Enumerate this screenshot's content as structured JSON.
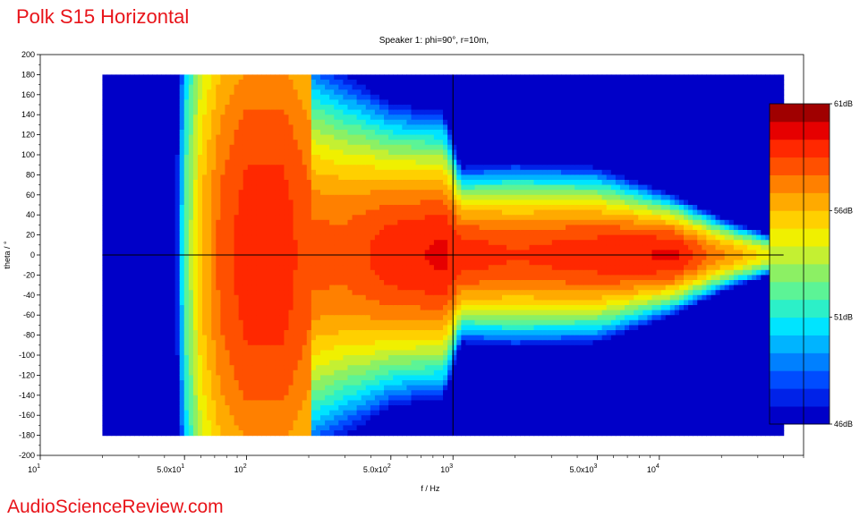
{
  "page_title": "Polk S15 Horizontal",
  "footer_brand": "AudioScienceReview.com",
  "chart_data": {
    "type": "heatmap",
    "title": "Speaker 1: phi=90°, r=10m,",
    "xlabel": "f / Hz",
    "ylabel": "theta / °",
    "x_scale": "log",
    "xlim": [
      10,
      50000
    ],
    "ylim": [
      -200,
      200
    ],
    "data_x_range": [
      20,
      40000
    ],
    "data_y_range": [
      -180,
      180
    ],
    "x_ticks": [
      {
        "value": 10,
        "base": "10",
        "exp": "1"
      },
      {
        "value": 50,
        "base": "5.0x10",
        "exp": "1"
      },
      {
        "value": 100,
        "base": "10",
        "exp": "2"
      },
      {
        "value": 500,
        "base": "5.0x10",
        "exp": "2"
      },
      {
        "value": 1000,
        "base": "10",
        "exp": "3"
      },
      {
        "value": 5000,
        "base": "5.0x10",
        "exp": "3"
      },
      {
        "value": 10000,
        "base": "10",
        "exp": "4"
      }
    ],
    "y_ticks": [
      200,
      180,
      160,
      140,
      120,
      100,
      80,
      60,
      40,
      20,
      0,
      -20,
      -40,
      -60,
      -80,
      -100,
      -120,
      -140,
      -160,
      -180,
      -200
    ],
    "crosshair": {
      "x": 1000,
      "y": 0
    },
    "colorbar": {
      "min": 46,
      "max": 61,
      "unit": "dB",
      "labels": [
        "61dB",
        "56dB",
        "51dB",
        "46dB"
      ],
      "label_values": [
        61,
        56,
        51,
        46
      ],
      "colors": [
        "#0000c8",
        "#0022e8",
        "#004cff",
        "#0080ff",
        "#00b4ff",
        "#00e4ff",
        "#2cf0c8",
        "#5cf496",
        "#8cf064",
        "#c4f032",
        "#f0f000",
        "#ffd000",
        "#ffaa00",
        "#ff8000",
        "#ff5000",
        "#ff2800",
        "#e60000",
        "#a00000"
      ]
    },
    "levels_at_0deg": [
      {
        "f": 20,
        "db": 46
      },
      {
        "f": 45,
        "db": 46
      },
      {
        "f": 50,
        "db": 52
      },
      {
        "f": 60,
        "db": 56
      },
      {
        "f": 75,
        "db": 58
      },
      {
        "f": 100,
        "db": 59
      },
      {
        "f": 150,
        "db": 59
      },
      {
        "f": 200,
        "db": 58
      },
      {
        "f": 300,
        "db": 58
      },
      {
        "f": 500,
        "db": 59
      },
      {
        "f": 900,
        "db": 59.5
      },
      {
        "f": 1100,
        "db": 59
      },
      {
        "f": 2000,
        "db": 58.5
      },
      {
        "f": 5000,
        "db": 59
      },
      {
        "f": 12000,
        "db": 59.5
      },
      {
        "f": 20000,
        "db": 57
      },
      {
        "f": 40000,
        "db": 54
      }
    ],
    "beamwidth_half_deg": [
      {
        "f": 20,
        "deg": 180
      },
      {
        "f": 200,
        "deg": 180
      },
      {
        "f": 300,
        "deg": 160
      },
      {
        "f": 500,
        "deg": 130
      },
      {
        "f": 900,
        "deg": 120
      },
      {
        "f": 1100,
        "deg": 75
      },
      {
        "f": 2000,
        "deg": 80
      },
      {
        "f": 5000,
        "deg": 75
      },
      {
        "f": 10000,
        "deg": 55
      },
      {
        "f": 20000,
        "deg": 35
      },
      {
        "f": 40000,
        "deg": 18
      }
    ]
  }
}
